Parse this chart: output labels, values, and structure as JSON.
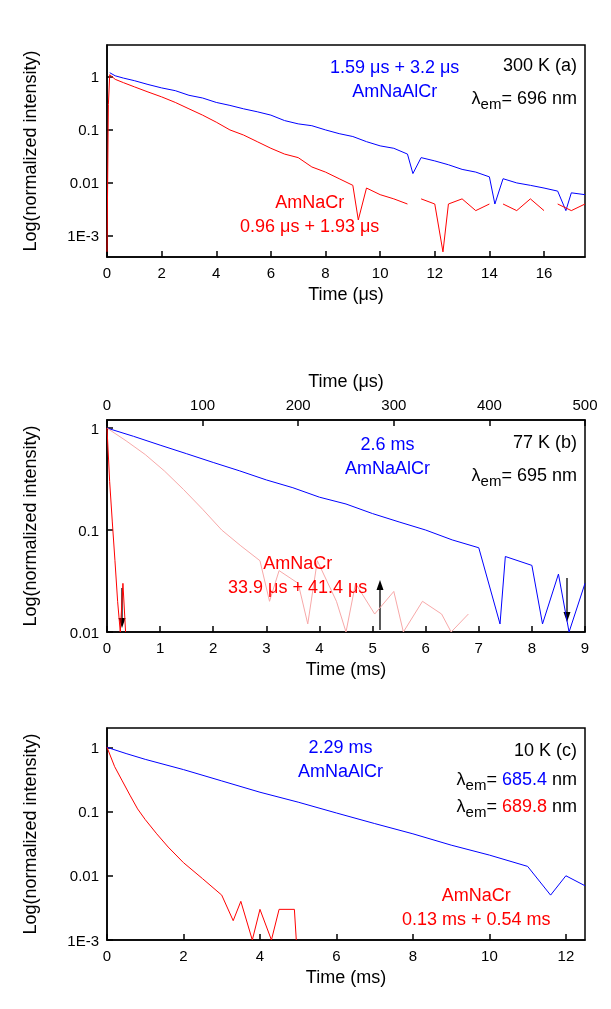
{
  "chart_data": [
    {
      "type": "line",
      "xlabel": "Time (μs)",
      "ylabel": "Log(normalized intensity)",
      "log": "y",
      "marker": "none",
      "xlim": [
        0,
        17.5
      ],
      "xticks": [
        0,
        2,
        4,
        6,
        8,
        10,
        12,
        14,
        16
      ],
      "ylim": [
        0.0004,
        4
      ],
      "yticks": [
        1,
        0.1,
        0.01,
        {
          "value": 0.001,
          "label": "1E-3"
        }
      ],
      "annotations": [
        "300 K (a)",
        "λ$_{em}$= 696 nm"
      ],
      "series": [
        {
          "name": "1.59 μs + 3.2 μs\nAmNaAlCr",
          "color": "#0000ff",
          "x": [
            0.1,
            0.3,
            0.6,
            1,
            1.5,
            2,
            2.5,
            3,
            3.5,
            4,
            4.5,
            5,
            5.5,
            6,
            6.5,
            7,
            7.5,
            8,
            8.5,
            9,
            9.5,
            10,
            10.5,
            11,
            11.2,
            11.5,
            12,
            12.5,
            13,
            13.5,
            14,
            14.2,
            14.5,
            15,
            15.5,
            16,
            16.5,
            16.8,
            17,
            17.5
          ],
          "values": [
            1.2,
            1.05,
            0.95,
            0.85,
            0.72,
            0.62,
            0.55,
            0.45,
            0.4,
            0.33,
            0.29,
            0.25,
            0.22,
            0.19,
            0.15,
            0.13,
            0.12,
            0.1,
            0.085,
            0.075,
            0.06,
            0.05,
            0.045,
            0.035,
            0.015,
            0.03,
            0.026,
            0.022,
            0.018,
            0.016,
            0.013,
            0.004,
            0.012,
            0.01,
            0.009,
            0.008,
            0.007,
            0.003,
            0.0065,
            0.006
          ]
        },
        {
          "name": "AmNaCr\n0.96 μs + 1.93 μs",
          "color": "#ff0000",
          "x": [
            0,
            0.05,
            0.1,
            0.3,
            0.6,
            1,
            1.5,
            2,
            2.5,
            3,
            3.5,
            4,
            4.5,
            5,
            5.5,
            6,
            6.5,
            7,
            7.5,
            8,
            8.5,
            9,
            9.2,
            9.5,
            10,
            10.5,
            11,
            11.1,
            11.5,
            12,
            12.3,
            12.5,
            13,
            13.5,
            14,
            14.3,
            14.5,
            15,
            15.5,
            16,
            16.3,
            16.5,
            17,
            17.5
          ],
          "values": [
            0.0005,
            0.3,
            1.1,
            0.9,
            0.78,
            0.65,
            0.52,
            0.42,
            0.33,
            0.25,
            0.19,
            0.14,
            0.1,
            0.08,
            0.06,
            0.045,
            0.035,
            0.03,
            0.02,
            0.016,
            0.012,
            0.009,
            0.002,
            0.008,
            0.006,
            0.005,
            0.004,
            null,
            0.005,
            0.004,
            0.0005,
            0.004,
            0.005,
            0.003,
            0.004,
            null,
            0.004,
            0.003,
            0.005,
            0.003,
            null,
            0.004,
            0.003,
            0.004
          ]
        }
      ]
    },
    {
      "type": "line",
      "xlabel": "Time (ms)",
      "x2label": "Time (μs)",
      "ylabel": "Log(normalized intensity)",
      "log": "y",
      "marker": "none",
      "xlim": [
        0,
        9
      ],
      "xticks": [
        0,
        1,
        2,
        3,
        4,
        5,
        6,
        7,
        8,
        9
      ],
      "x2lim": [
        0,
        500
      ],
      "x2ticks": [
        0,
        100,
        200,
        300,
        400,
        500
      ],
      "ylim": [
        0.01,
        1.2
      ],
      "yticks": [
        1,
        0.1,
        0.01
      ],
      "annotations": [
        "77 K (b)",
        "λ$_{em}$= 695 nm"
      ],
      "series": [
        {
          "name": "2.6 ms\nAmNaAlCr",
          "color": "#0000ff",
          "x": [
            0,
            0.5,
            1,
            1.5,
            2,
            2.5,
            3,
            3.5,
            4,
            4.5,
            5,
            5.5,
            6,
            6.5,
            7,
            7.4,
            7.5,
            8,
            8.2,
            8.5,
            8.7,
            9
          ],
          "values": [
            1,
            0.83,
            0.68,
            0.56,
            0.46,
            0.38,
            0.31,
            0.26,
            0.21,
            0.18,
            0.145,
            0.12,
            0.1,
            0.08,
            0.067,
            0.012,
            0.055,
            0.045,
            0.012,
            0.037,
            0.01,
            0.03
          ]
        },
        {
          "color": "#f7a8a8",
          "axis": "x2",
          "x": [
            0,
            20,
            40,
            60,
            80,
            100,
            120,
            140,
            160,
            170,
            180,
            200,
            210,
            220,
            240,
            250,
            260,
            280,
            300,
            310,
            330,
            350,
            360,
            378
          ],
          "values": [
            1,
            0.75,
            0.55,
            0.38,
            0.25,
            0.16,
            0.1,
            0.07,
            0.05,
            0.02,
            0.04,
            0.03,
            0.012,
            0.05,
            0.02,
            0.01,
            0.03,
            0.015,
            0.025,
            0.01,
            0.02,
            0.015,
            0.01,
            0.015
          ]
        },
        {
          "name": "AmNaCr\n33.9 μs + 41.4 μs",
          "color": "#ff0000",
          "x": [
            0,
            0.05,
            0.1,
            0.15,
            0.2,
            0.25,
            0.3,
            0.35
          ],
          "values": [
            1,
            0.3,
            0.12,
            0.05,
            0.02,
            0.01,
            0.03,
            0.01
          ]
        }
      ]
    },
    {
      "type": "line",
      "xlabel": "Time (ms)",
      "ylabel": "Log(normalized intensity)",
      "log": "y",
      "marker": "none",
      "xlim": [
        0,
        12.5
      ],
      "xticks": [
        0,
        2,
        4,
        6,
        8,
        10,
        12
      ],
      "ylim": [
        0.001,
        2
      ],
      "yticks": [
        1,
        0.1,
        0.01,
        {
          "value": 0.001,
          "label": "1E-3"
        }
      ],
      "annotations": [
        "10 K (c)",
        "λ$_{em}$= 685.4 nm",
        "λ$_{em}$= 689.8 nm"
      ],
      "series": [
        {
          "name": "2.29 ms\nAmNaAlCr",
          "color": "#0000ff",
          "x": [
            0,
            0.5,
            1,
            2,
            3,
            4,
            5,
            6,
            7,
            8,
            9,
            10,
            11,
            11.6,
            12,
            12.5
          ],
          "values": [
            1,
            0.8,
            0.65,
            0.45,
            0.3,
            0.2,
            0.14,
            0.095,
            0.065,
            0.045,
            0.03,
            0.021,
            0.014,
            0.005,
            0.01,
            0.007
          ]
        },
        {
          "name": "AmNaCr\n0.13 ms + 0.54 ms",
          "color": "#ff0000",
          "x": [
            0,
            0.2,
            0.4,
            0.6,
            0.8,
            1,
            1.3,
            1.6,
            2,
            2.5,
            3,
            3.3,
            3.5,
            3.8,
            4,
            4.3,
            4.5,
            4.9,
            4.95
          ],
          "values": [
            1,
            0.5,
            0.3,
            0.18,
            0.11,
            0.075,
            0.045,
            0.028,
            0.016,
            0.009,
            0.005,
            0.002,
            0.004,
            0.001,
            0.003,
            0.001,
            0.003,
            0.003,
            0.001
          ]
        }
      ]
    }
  ]
}
